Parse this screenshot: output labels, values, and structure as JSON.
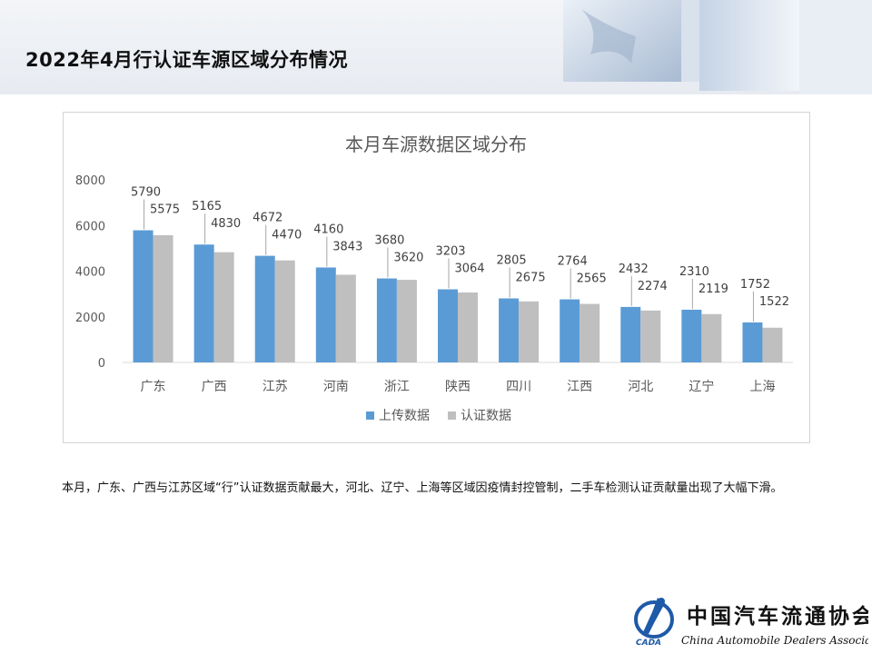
{
  "page": {
    "title": "2022年4月行认证车源区域分布情况",
    "caption": "本月，广东、广西与江苏区域“行”认证数据贡献最大，河北、辽宁、上海等区域因疫情封控管制，二手车检测认证贡献量出现了大幅下滑。"
  },
  "logo": {
    "org_name_cn": "中国汽车流通协会",
    "org_name_en": "China Automobile Dealers Association",
    "mark": "CADA"
  },
  "colors": {
    "upload": "#5b9bd5",
    "certified": "#bfbfbf"
  },
  "chart_data": {
    "type": "bar",
    "title": "本月车源数据区域分布",
    "categories": [
      "广东",
      "广西",
      "江苏",
      "河南",
      "浙江",
      "陕西",
      "四川",
      "江西",
      "河北",
      "辽宁",
      "上海"
    ],
    "series": [
      {
        "name": "上传数据",
        "values": [
          5790,
          5165,
          4672,
          4160,
          3680,
          3203,
          2805,
          2764,
          2432,
          2310,
          1752
        ]
      },
      {
        "name": "认证数据",
        "values": [
          5575,
          4830,
          4470,
          3843,
          3620,
          3064,
          2675,
          2565,
          2274,
          2119,
          1522
        ]
      }
    ],
    "yticks": [
      0,
      2000,
      4000,
      6000,
      8000
    ],
    "ylim": [
      0,
      8000
    ],
    "legend": "bottom",
    "grid": false
  }
}
